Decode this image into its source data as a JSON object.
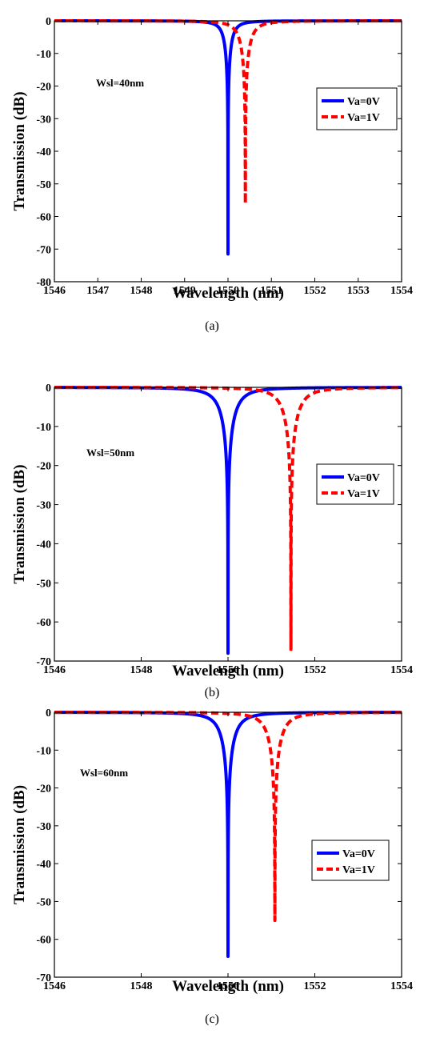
{
  "chart_data": [
    {
      "type": "line",
      "panel_caption": "(a)",
      "xlabel": "Wavelength (nm)",
      "ylabel": "Transmission (dB)",
      "xlim": [
        1546,
        1554
      ],
      "ylim": [
        -80,
        0
      ],
      "xticks": [
        1546,
        1547,
        1548,
        1549,
        1550,
        1551,
        1552,
        1553,
        1554
      ],
      "yticks": [
        0,
        -10,
        -20,
        -30,
        -40,
        -50,
        -60,
        -70,
        -80
      ],
      "annotation": "Wsl=40nm",
      "legend": "right",
      "grid": false,
      "series": [
        {
          "name": "Va=0V",
          "color": "#0000ff",
          "style": "solid",
          "resonance": 1550.0,
          "min_db": -71.5,
          "hwhm": 0.165
        },
        {
          "name": "Va=1V",
          "color": "#ff0000",
          "style": "dashed",
          "resonance": 1550.4,
          "min_db": -56,
          "hwhm": 0.23
        }
      ]
    },
    {
      "type": "line",
      "panel_caption": "(b)",
      "xlabel": "Wavelength (nm)",
      "ylabel": "Transmission (dB)",
      "xlim": [
        1546,
        1554
      ],
      "ylim": [
        -70,
        0
      ],
      "xticks": [
        1546,
        1548,
        1550,
        1552,
        1554
      ],
      "yticks": [
        0,
        -10,
        -20,
        -30,
        -40,
        -50,
        -60,
        -70
      ],
      "annotation": "Wsl=50nm",
      "legend": "right",
      "grid": false,
      "series": [
        {
          "name": "Va=0V",
          "color": "#0000ff",
          "style": "solid",
          "resonance": 1550.0,
          "min_db": -68,
          "hwhm": 0.33
        },
        {
          "name": "Va=1V",
          "color": "#ff0000",
          "style": "dashed",
          "resonance": 1551.45,
          "min_db": -67,
          "hwhm": 0.33
        }
      ]
    },
    {
      "type": "line",
      "panel_caption": "(c)",
      "xlabel": "Wavelength (nm)",
      "ylabel": "Transmission (dB)",
      "xlim": [
        1546,
        1554
      ],
      "ylim": [
        -70,
        0
      ],
      "xticks": [
        1546,
        1548,
        1550,
        1552,
        1554
      ],
      "yticks": [
        0,
        -10,
        -20,
        -30,
        -40,
        -50,
        -60,
        -70
      ],
      "annotation": "Wsl=60nm",
      "legend": "right",
      "grid": false,
      "series": [
        {
          "name": "Va=0V",
          "color": "#0000ff",
          "style": "solid",
          "resonance": 1550.0,
          "min_db": -64.5,
          "hwhm": 0.3
        },
        {
          "name": "Va=1V",
          "color": "#ff0000",
          "style": "dashed",
          "resonance": 1551.08,
          "min_db": -55,
          "hwhm": 0.3
        }
      ]
    }
  ]
}
